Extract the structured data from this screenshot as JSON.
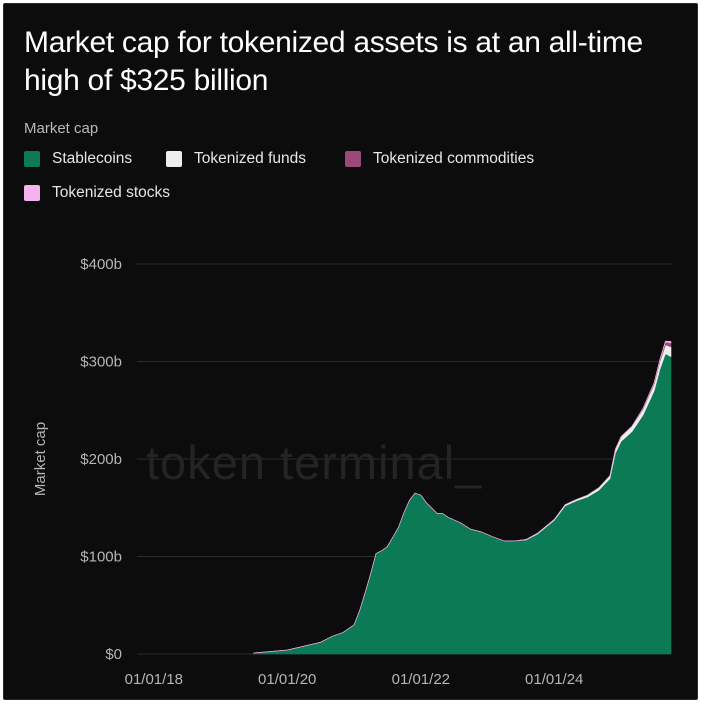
{
  "title": "Market cap for tokenized assets is at an all-time high of $325 billion",
  "legend_title": "Market cap",
  "watermark": "token terminal_",
  "colors": {
    "stablecoins": "#0b7a55",
    "tokenized_funds": "#eeeeee",
    "tokenized_commodities": "#9b4a78",
    "tokenized_stocks": "#f4b2ee",
    "grid": "#2c2c2c",
    "axis_text": "#b5b5b5"
  },
  "chart_data": {
    "type": "area",
    "stacked": true,
    "title": "Market cap for tokenized assets is at an all-time high of $325 billion",
    "ylabel": "Market cap",
    "xlabel": "",
    "ylim": [
      0,
      400
    ],
    "xlim": [
      "2017-10-01",
      "2025-10-01"
    ],
    "grid": true,
    "legend_placement": "top-left",
    "y_ticks": [
      {
        "value": 0,
        "label": "$0"
      },
      {
        "value": 100,
        "label": "$100b"
      },
      {
        "value": 200,
        "label": "$200b"
      },
      {
        "value": 300,
        "label": "$300b"
      },
      {
        "value": 400,
        "label": "$400b"
      }
    ],
    "x_ticks": [
      {
        "value": "2018-01-01",
        "label": "01/01/18"
      },
      {
        "value": "2020-01-01",
        "label": "01/01/20"
      },
      {
        "value": "2022-01-01",
        "label": "01/01/22"
      },
      {
        "value": "2024-01-01",
        "label": "01/01/24"
      }
    ],
    "x": [
      "2019-07-01",
      "2020-01-01",
      "2020-04-01",
      "2020-07-01",
      "2020-09-01",
      "2020-11-01",
      "2021-01-01",
      "2021-02-01",
      "2021-03-01",
      "2021-04-01",
      "2021-05-01",
      "2021-06-01",
      "2021-07-01",
      "2021-08-01",
      "2021-09-01",
      "2021-10-01",
      "2021-11-01",
      "2021-12-01",
      "2022-01-01",
      "2022-02-01",
      "2022-04-01",
      "2022-05-01",
      "2022-06-01",
      "2022-08-01",
      "2022-10-01",
      "2022-12-01",
      "2023-02-01",
      "2023-04-01",
      "2023-06-01",
      "2023-08-01",
      "2023-10-01",
      "2024-01-01",
      "2024-03-01",
      "2024-05-01",
      "2024-07-01",
      "2024-09-01",
      "2024-11-01",
      "2024-12-01",
      "2025-01-01",
      "2025-03-01",
      "2025-05-01",
      "2025-07-01",
      "2025-08-01",
      "2025-09-01",
      "2025-10-01"
    ],
    "series": [
      {
        "name": "Stablecoins",
        "values": [
          1,
          4,
          8,
          12,
          18,
          22,
          30,
          45,
          62,
          82,
          103,
          106,
          110,
          120,
          130,
          145,
          158,
          165,
          163,
          155,
          144,
          144,
          140,
          135,
          128,
          125,
          120,
          116,
          116,
          117,
          123,
          137,
          152,
          157,
          161,
          168,
          180,
          206,
          218,
          228,
          245,
          270,
          292,
          308,
          305
        ]
      },
      {
        "name": "Tokenized funds",
        "values": [
          0,
          0,
          0,
          0,
          0,
          0,
          0,
          0,
          0,
          0,
          0,
          0,
          0,
          0,
          0,
          0,
          0,
          0,
          0,
          0,
          0,
          0,
          0,
          0,
          0,
          0,
          0,
          0,
          0,
          0.5,
          0.8,
          1,
          1.2,
          1.5,
          2,
          2.5,
          3,
          4,
          5,
          5.5,
          6,
          7,
          8,
          9,
          10
        ]
      },
      {
        "name": "Tokenized commodities",
        "values": [
          0,
          0,
          0,
          0,
          0,
          0,
          0,
          0,
          0,
          0,
          0,
          0,
          0,
          0,
          0,
          0,
          0,
          0,
          0,
          0,
          0,
          0,
          0,
          0,
          0,
          0,
          0,
          0,
          0,
          0,
          0,
          0,
          0,
          0,
          0,
          0,
          0,
          0,
          0,
          0,
          1,
          1.5,
          2,
          3,
          4
        ]
      },
      {
        "name": "Tokenized stocks",
        "values": [
          0,
          0,
          0,
          0,
          0,
          0,
          0,
          0,
          0,
          0,
          0,
          0,
          0,
          0,
          0,
          0,
          0,
          0,
          0,
          0,
          0,
          0,
          0,
          0,
          0,
          0,
          0,
          0,
          0,
          0,
          0,
          0,
          0,
          0,
          0,
          0,
          0,
          0,
          0,
          0,
          0,
          0,
          0.5,
          1,
          1.5
        ]
      }
    ]
  }
}
